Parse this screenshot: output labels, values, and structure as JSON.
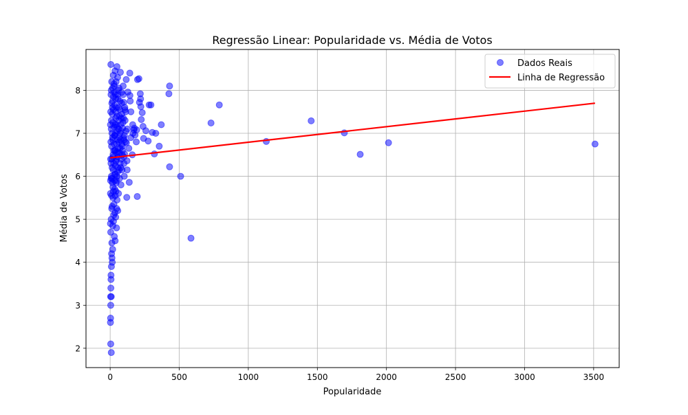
{
  "chart_data": {
    "type": "scatter",
    "title": "Regressão Linear: Popularidade vs. Média de Votos",
    "xlabel": "Popularidade",
    "ylabel": "Média de Votos",
    "xlim": [
      -175,
      3685
    ],
    "ylim": [
      1.55,
      8.95
    ],
    "x_ticks": [
      0,
      500,
      1000,
      1500,
      2000,
      2500,
      3000,
      3500
    ],
    "x_tick_labels": [
      "0",
      "500",
      "1000",
      "1500",
      "2000",
      "2500",
      "3000",
      "3500"
    ],
    "y_ticks": [
      2,
      3,
      4,
      5,
      6,
      7,
      8
    ],
    "y_tick_labels": [
      "2",
      "3",
      "4",
      "5",
      "6",
      "7",
      "8"
    ],
    "grid": true,
    "legend_position": "top-right",
    "legend": [
      {
        "label": "Dados Reais",
        "kind": "marker",
        "color": "#0000ff"
      },
      {
        "label": "Linha de Regressão",
        "kind": "line",
        "color": "#ff0000"
      }
    ],
    "series": [
      {
        "name": "Dados Reais",
        "kind": "scatter",
        "color": "#0000ff",
        "opacity": 0.5,
        "points": [
          [
            3510,
            6.75
          ],
          [
            2015,
            6.78
          ],
          [
            1810,
            6.51
          ],
          [
            1695,
            7.01
          ],
          [
            1455,
            7.29
          ],
          [
            1130,
            6.81
          ],
          [
            790,
            7.66
          ],
          [
            730,
            7.24
          ],
          [
            585,
            4.56
          ],
          [
            510,
            6.0
          ],
          [
            430,
            8.1
          ],
          [
            425,
            7.92
          ],
          [
            430,
            6.22
          ],
          [
            370,
            7.2
          ],
          [
            355,
            6.7
          ],
          [
            330,
            7.0
          ],
          [
            320,
            6.52
          ],
          [
            305,
            7.02
          ],
          [
            295,
            7.66
          ],
          [
            282,
            7.66
          ],
          [
            275,
            6.82
          ],
          [
            258,
            7.06
          ],
          [
            242,
            6.88
          ],
          [
            238,
            7.16
          ],
          [
            232,
            7.48
          ],
          [
            225,
            7.32
          ],
          [
            222,
            7.62
          ],
          [
            220,
            7.8
          ],
          [
            218,
            7.92
          ],
          [
            212,
            7.72
          ],
          [
            208,
            8.27
          ],
          [
            198,
            8.25
          ],
          [
            196,
            5.53
          ],
          [
            192,
            7.08
          ],
          [
            189,
            6.8
          ],
          [
            180,
            6.96
          ],
          [
            172,
            7.08
          ],
          [
            163,
            7.2
          ],
          [
            160,
            6.5
          ],
          [
            150,
            7.5
          ],
          [
            145,
            7.75
          ],
          [
            143,
            7.88
          ],
          [
            142,
            8.4
          ],
          [
            138,
            5.86
          ],
          [
            128,
            7.96
          ],
          [
            123,
            6.15
          ],
          [
            122,
            6.36
          ],
          [
            120,
            5.51
          ],
          [
            118,
            6.78
          ],
          [
            116,
            8.25
          ],
          [
            114,
            7.05
          ],
          [
            110,
            6.8
          ],
          [
            108,
            7.3
          ],
          [
            106,
            7.6
          ],
          [
            104,
            6.52
          ],
          [
            102,
            6.0
          ],
          [
            100,
            6.3
          ],
          [
            98,
            7.72
          ],
          [
            96,
            6.9
          ],
          [
            94,
            8.1
          ],
          [
            90,
            7.12
          ],
          [
            88,
            6.7
          ],
          [
            86,
            6.15
          ],
          [
            84,
            7.45
          ],
          [
            82,
            7.95
          ],
          [
            80,
            6.4
          ],
          [
            78,
            5.8
          ],
          [
            76,
            7.2
          ],
          [
            74,
            8.42
          ],
          [
            72,
            6.65
          ],
          [
            70,
            7.55
          ],
          [
            68,
            5.95
          ],
          [
            66,
            6.9
          ],
          [
            64,
            8.05
          ],
          [
            62,
            7.3
          ],
          [
            60,
            5.6
          ],
          [
            58,
            6.55
          ],
          [
            56,
            7.8
          ],
          [
            55,
            5.2
          ],
          [
            54,
            8.3
          ],
          [
            53,
            6.1
          ],
          [
            52,
            7.05
          ],
          [
            50,
            5.45
          ],
          [
            49,
            8.55
          ],
          [
            48,
            6.75
          ],
          [
            46,
            4.8
          ],
          [
            45,
            7.6
          ],
          [
            44,
            5.9
          ],
          [
            43,
            8.2
          ],
          [
            42,
            6.35
          ],
          [
            41,
            7.35
          ],
          [
            40,
            5.05
          ],
          [
            38,
            7.9
          ],
          [
            37,
            6.25
          ],
          [
            36,
            4.5
          ],
          [
            35,
            8.45
          ],
          [
            34,
            6.95
          ],
          [
            33,
            5.7
          ],
          [
            32,
            7.65
          ],
          [
            31,
            6.05
          ],
          [
            30,
            4.6
          ],
          [
            29,
            8.1
          ],
          [
            28,
            7.15
          ],
          [
            27,
            5.35
          ],
          [
            26,
            6.6
          ],
          [
            25,
            7.85
          ],
          [
            24,
            4.95
          ],
          [
            23,
            8.35
          ],
          [
            22,
            6.45
          ],
          [
            21,
            5.5
          ],
          [
            20,
            7.25
          ],
          [
            19,
            6.85
          ],
          [
            18,
            4.3
          ],
          [
            17,
            8.05
          ],
          [
            16,
            5.85
          ],
          [
            15,
            7.45
          ],
          [
            14,
            6.2
          ],
          [
            13,
            4.1
          ],
          [
            12,
            7.7
          ],
          [
            11,
            5.25
          ],
          [
            10,
            6.7
          ],
          [
            9,
            3.9
          ],
          [
            8,
            7.1
          ],
          [
            7,
            5.0
          ],
          [
            6,
            3.6
          ],
          [
            5,
            8.6
          ],
          [
            4,
            4.7
          ],
          [
            3,
            3.2
          ],
          [
            2,
            2.6
          ],
          [
            3,
            2.7
          ],
          [
            4,
            3.0
          ],
          [
            5,
            3.4
          ],
          [
            6,
            3.7
          ],
          [
            8,
            3.2
          ],
          [
            10,
            4.2
          ],
          [
            12,
            4.45
          ],
          [
            15,
            4.0
          ],
          [
            4,
            2.1
          ],
          [
            8,
            1.9
          ],
          [
            2,
            5.6
          ],
          [
            3,
            6.4
          ],
          [
            6,
            7.9
          ],
          [
            9,
            6.0
          ],
          [
            11,
            8.2
          ],
          [
            14,
            5.3
          ],
          [
            17,
            6.9
          ],
          [
            20,
            5.75
          ],
          [
            24,
            7.55
          ],
          [
            27,
            6.3
          ],
          [
            30,
            7.95
          ],
          [
            33,
            6.6
          ],
          [
            36,
            5.55
          ],
          [
            39,
            7.0
          ],
          [
            42,
            5.65
          ],
          [
            45,
            6.4
          ],
          [
            48,
            7.4
          ],
          [
            52,
            6.85
          ],
          [
            57,
            6.2
          ],
          [
            62,
            7.6
          ],
          [
            67,
            6.55
          ],
          [
            72,
            7.0
          ],
          [
            77,
            6.2
          ],
          [
            83,
            7.7
          ],
          [
            89,
            6.6
          ],
          [
            96,
            7.35
          ],
          [
            103,
            6.95
          ],
          [
            112,
            7.5
          ],
          [
            125,
            7.1
          ],
          [
            135,
            6.65
          ],
          [
            150,
            6.9
          ],
          [
            165,
            7.0
          ],
          [
            175,
            7.12
          ],
          [
            2,
            4.9
          ],
          [
            3,
            5.9
          ],
          [
            5,
            6.8
          ],
          [
            7,
            5.95
          ],
          [
            9,
            7.3
          ],
          [
            12,
            6.4
          ],
          [
            16,
            7.6
          ],
          [
            19,
            4.85
          ],
          [
            23,
            6.15
          ],
          [
            26,
            5.1
          ],
          [
            29,
            6.75
          ],
          [
            32,
            5.9
          ],
          [
            35,
            7.2
          ],
          [
            38,
            6.05
          ],
          [
            41,
            7.8
          ],
          [
            44,
            6.55
          ],
          [
            47,
            5.25
          ],
          [
            51,
            7.15
          ],
          [
            55,
            6.45
          ],
          [
            59,
            8.0
          ],
          [
            63,
            6.8
          ],
          [
            68,
            7.4
          ],
          [
            73,
            6.3
          ],
          [
            79,
            7.05
          ],
          [
            85,
            6.75
          ],
          [
            92,
            7.25
          ],
          [
            99,
            6.45
          ],
          [
            107,
            7.55
          ],
          [
            2,
            7.2
          ],
          [
            4,
            7.5
          ],
          [
            6,
            6.3
          ],
          [
            8,
            8.0
          ],
          [
            10,
            5.55
          ],
          [
            13,
            7.0
          ],
          [
            15,
            5.95
          ],
          [
            18,
            7.75
          ],
          [
            21,
            6.5
          ],
          [
            24,
            5.65
          ],
          [
            28,
            8.15
          ],
          [
            31,
            6.95
          ],
          [
            34,
            5.15
          ],
          [
            37,
            6.6
          ],
          [
            40,
            7.5
          ],
          [
            43,
            5.85
          ],
          [
            46,
            7.2
          ],
          [
            50,
            6.0
          ],
          [
            54,
            7.9
          ],
          [
            58,
            6.65
          ],
          [
            61,
            7.1
          ],
          [
            65,
            6.15
          ],
          [
            70,
            7.75
          ],
          [
            75,
            6.85
          ],
          [
            81,
            7.35
          ],
          [
            87,
            6.5
          ],
          [
            94,
            7.9
          ],
          [
            101,
            6.85
          ]
        ]
      },
      {
        "name": "Linha de Regressão",
        "kind": "line",
        "color": "#ff0000",
        "x": [
          0,
          3510
        ],
        "y": [
          6.43,
          7.7
        ]
      }
    ]
  }
}
